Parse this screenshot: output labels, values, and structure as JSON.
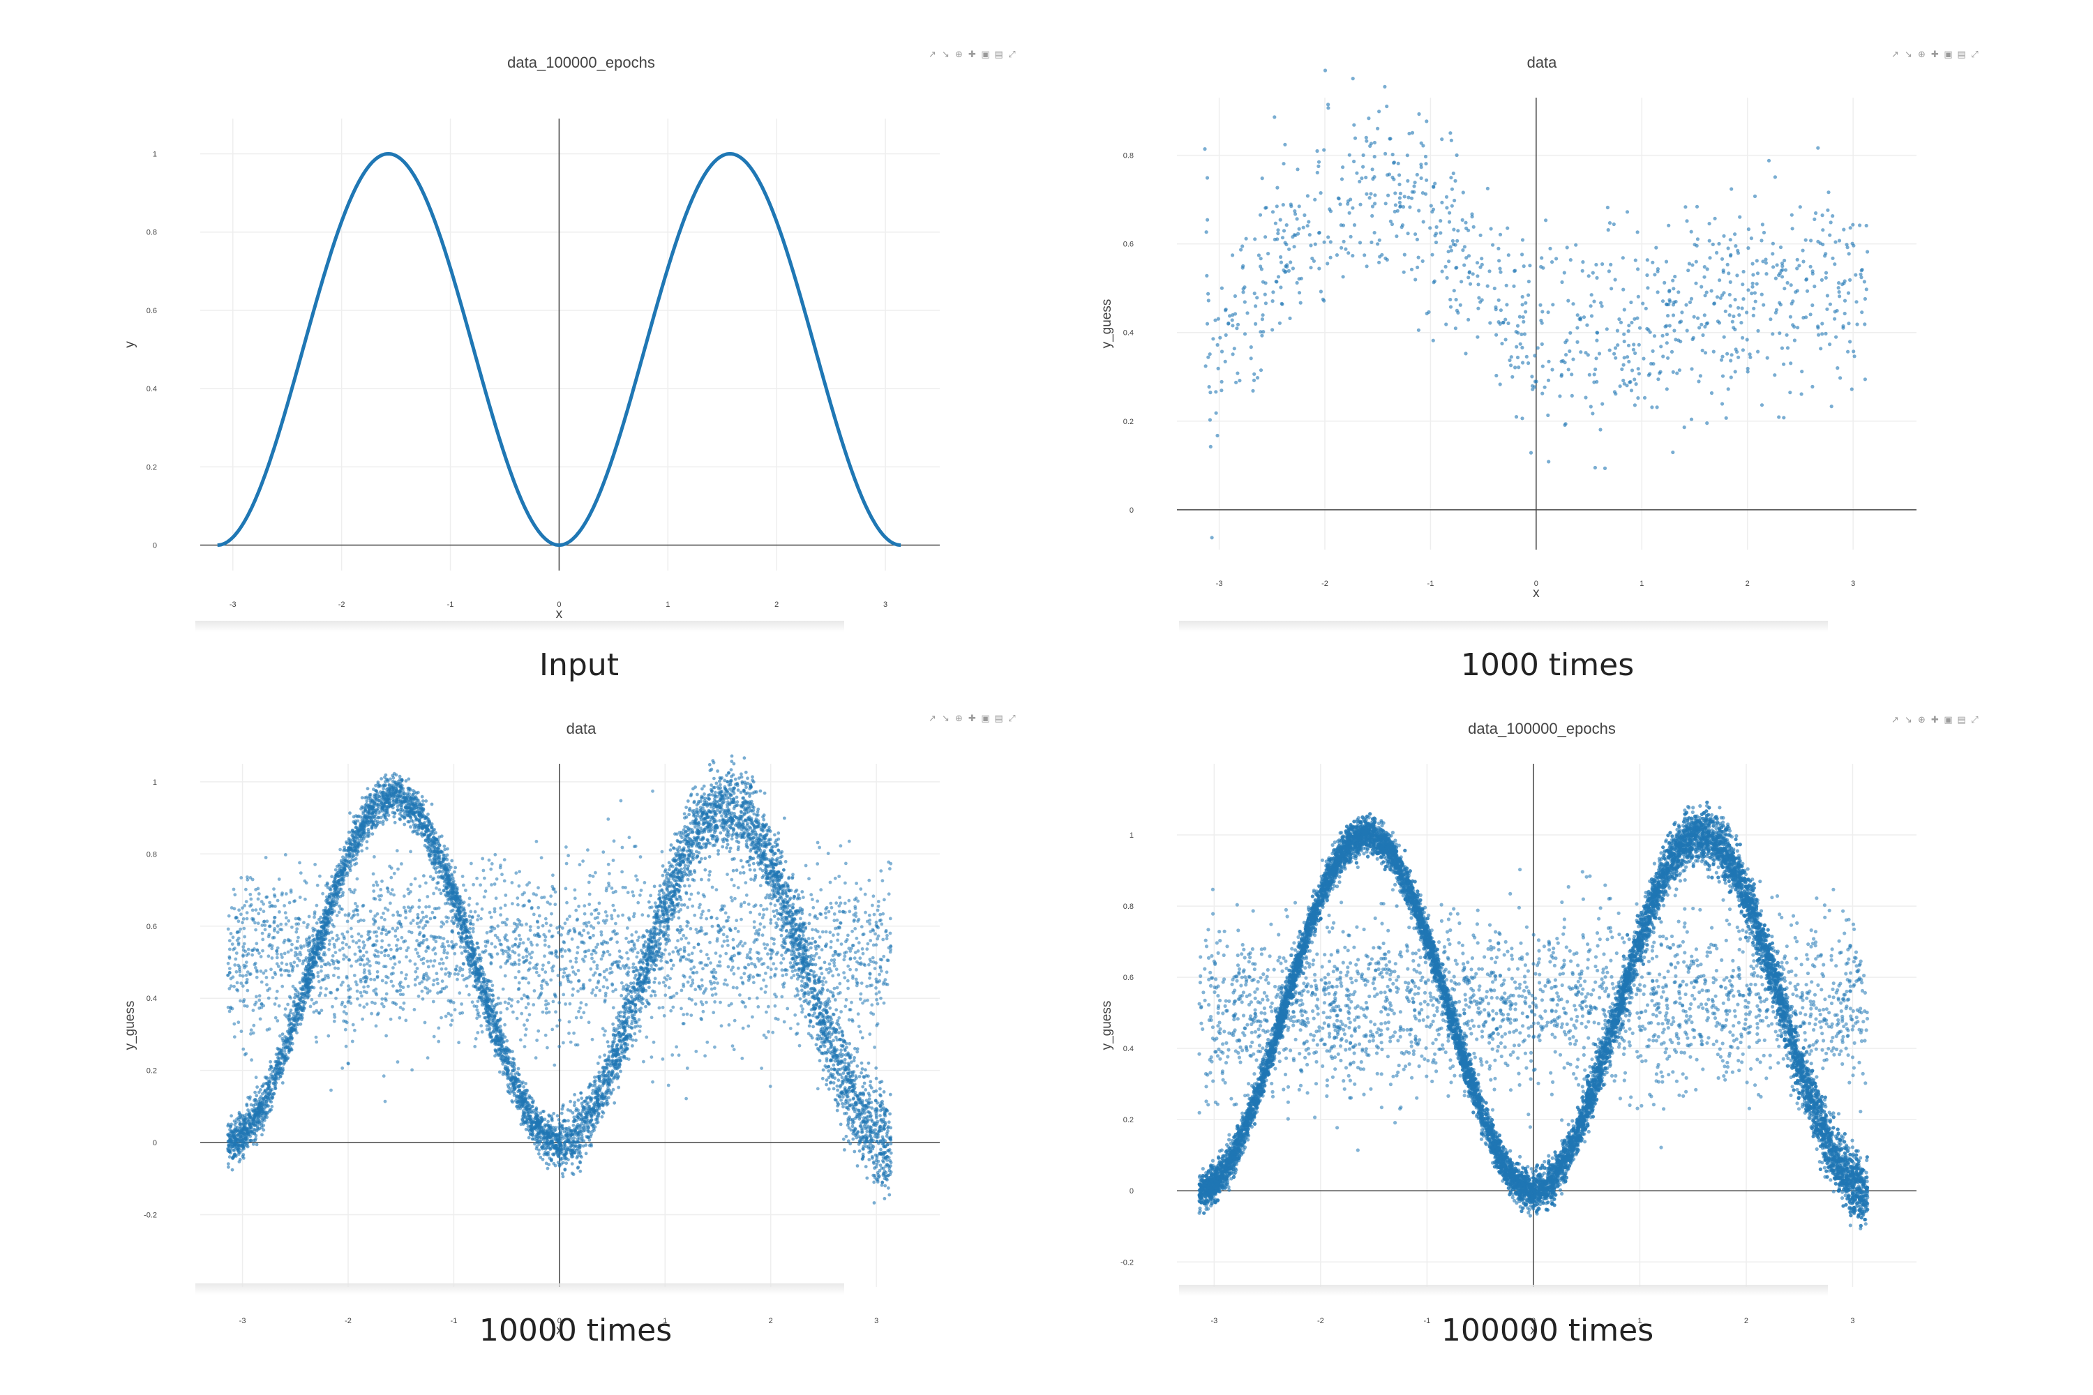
{
  "panels": [
    {
      "title": "data_100000_epochs",
      "caption": "Input",
      "xlabel": "x",
      "ylabel": "y",
      "xticks": [
        "-3",
        "-2",
        "-1",
        "0",
        "1",
        "2",
        "3"
      ],
      "yticks": [
        "0",
        "0.2",
        "0.4",
        "0.6",
        "0.8",
        "1"
      ]
    },
    {
      "title": "data",
      "caption": "1000 times",
      "xlabel": "x",
      "ylabel": "y_guess",
      "xticks": [
        "-3",
        "-2",
        "-1",
        "0",
        "1",
        "2",
        "3"
      ],
      "yticks": [
        "0",
        "0.2",
        "0.4",
        "0.6",
        "0.8"
      ]
    },
    {
      "title": "data",
      "caption": "10000 times",
      "xlabel": "x",
      "ylabel": "y_guess",
      "xticks": [
        "-3",
        "-2",
        "-1",
        "0",
        "1",
        "2",
        "3"
      ],
      "yticks": [
        "-0.2",
        "0",
        "0.2",
        "0.4",
        "0.6",
        "0.8",
        "1"
      ]
    },
    {
      "title": "data_100000_epochs",
      "caption": "100000 times",
      "xlabel": "x",
      "ylabel": "y_guess",
      "xticks": [
        "-3",
        "-2",
        "-1",
        "0",
        "1",
        "2",
        "3"
      ],
      "yticks": [
        "-0.2",
        "0",
        "0.2",
        "0.4",
        "0.6",
        "0.8",
        "1"
      ]
    }
  ],
  "modebar_icons": [
    "compare-icon",
    "spike-icon",
    "zoom-icon",
    "pan-icon",
    "zoom-in-icon",
    "zoom-out-icon",
    "autoscale-icon"
  ],
  "colors": {
    "series": "#1f77b4",
    "grid": "#eeeeee",
    "zeroline": "#444444"
  },
  "chart_data": [
    {
      "type": "line",
      "title": "data_100000_epochs",
      "xlabel": "x",
      "ylabel": "y",
      "xlim": [
        -3.14159,
        3.14159
      ],
      "ylim": [
        0,
        1
      ],
      "series": [
        {
          "function": "y = sin(x)^2",
          "x_range": [
            -3.14159,
            3.14159
          ],
          "samples": 400
        }
      ],
      "grid": true
    },
    {
      "type": "scatter",
      "title": "data",
      "xlabel": "x",
      "ylabel": "y_guess",
      "xlim": [
        -3.14159,
        3.14159
      ],
      "ylim": [
        -0.05,
        0.9
      ],
      "points": 1000,
      "series": [
        {
          "description": "noisy guess around 0.45 + 0.3*sin(x-ish)",
          "curve": [
            [
              -3.1,
              0.3
            ],
            [
              -2.5,
              0.55
            ],
            [
              -2.0,
              0.65
            ],
            [
              -1.5,
              0.72
            ],
            [
              -1.0,
              0.65
            ],
            [
              -0.5,
              0.5
            ],
            [
              0,
              0.38
            ],
            [
              0.5,
              0.4
            ],
            [
              1.0,
              0.42
            ],
            [
              1.5,
              0.45
            ],
            [
              2.0,
              0.48
            ],
            [
              2.5,
              0.5
            ],
            [
              3.1,
              0.52
            ]
          ],
          "spread": 0.12
        }
      ],
      "grid": true
    },
    {
      "type": "scatter",
      "title": "data",
      "xlabel": "x",
      "ylabel": "y_guess",
      "xlim": [
        -3.14159,
        3.14159
      ],
      "ylim": [
        -0.3,
        1.0
      ],
      "points": 10000,
      "series": [
        {
          "description": "points approximating sin(x)^2 with background noise",
          "curve_peaks": {
            "left": 0.96,
            "right": 0.93
          },
          "background_band": [
            0.35,
            0.7
          ]
        }
      ],
      "grid": true
    },
    {
      "type": "scatter",
      "title": "data_100000_epochs",
      "xlabel": "x",
      "ylabel": "y_guess",
      "xlim": [
        -3.14159,
        3.14159
      ],
      "ylim": [
        -0.2,
        1.05
      ],
      "points": 100000,
      "series": [
        {
          "description": "dense band closely following sin(x)^2",
          "curve_peaks": {
            "left": 1.0,
            "right": 1.0
          },
          "background_band": [
            0.35,
            0.7
          ]
        }
      ],
      "grid": true
    }
  ]
}
